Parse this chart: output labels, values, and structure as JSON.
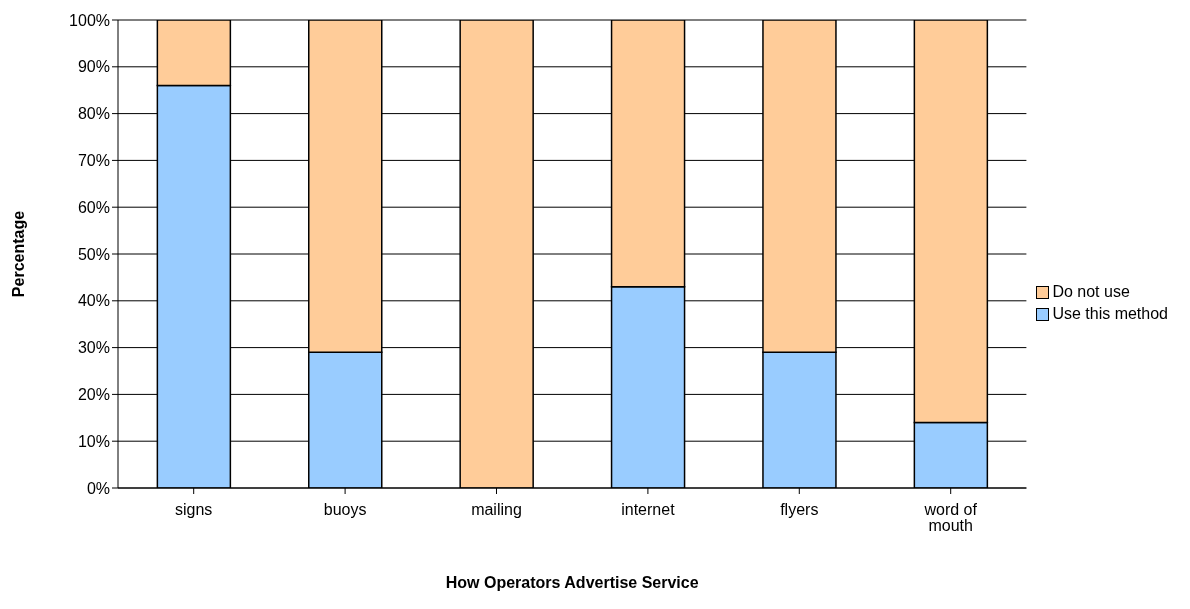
{
  "chart_data": {
    "type": "bar",
    "stacked": true,
    "xlabel": "How Operators Advertise Service",
    "ylabel": "Percentage",
    "categories": [
      "signs",
      "buoys",
      "mailing",
      "internet",
      "flyers",
      "word of mouth"
    ],
    "series": [
      {
        "name": "Use this method",
        "color": "#99ccff",
        "values": [
          86,
          29,
          0,
          43,
          29,
          14
        ]
      },
      {
        "name": "Do not use",
        "color": "#ffcc99",
        "values": [
          14,
          71,
          100,
          57,
          71,
          86
        ]
      }
    ],
    "ylim": [
      0,
      100
    ],
    "yticks": [
      {
        "value": 0,
        "label": "0%"
      },
      {
        "value": 10,
        "label": "10%"
      },
      {
        "value": 20,
        "label": "20%"
      },
      {
        "value": 30,
        "label": "30%"
      },
      {
        "value": 40,
        "label": "40%"
      },
      {
        "value": 50,
        "label": "50%"
      },
      {
        "value": 60,
        "label": "60%"
      },
      {
        "value": 70,
        "label": "70%"
      },
      {
        "value": 80,
        "label": "80%"
      },
      {
        "value": 90,
        "label": "90%"
      },
      {
        "value": 100,
        "label": "100%"
      }
    ],
    "grid": "y",
    "legend": "right"
  }
}
